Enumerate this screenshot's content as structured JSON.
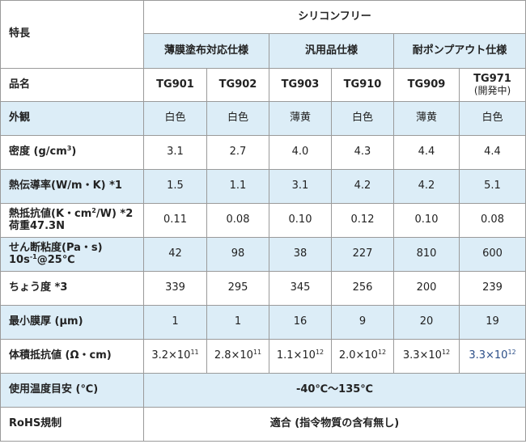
{
  "header": {
    "feature_label": "特長",
    "category": "シリコンフリー",
    "groups": [
      "薄膜塗布対応仕様",
      "汎用品仕様",
      "耐ポンプアウト仕様"
    ]
  },
  "rows": {
    "product": {
      "label": "品名",
      "values": [
        "TG901",
        "TG902",
        "TG903",
        "TG910",
        "TG909",
        "TG971"
      ],
      "note": "(開発中)"
    },
    "appearance": {
      "label": "外観",
      "values": [
        "白色",
        "白色",
        "薄黄",
        "白色",
        "薄黄",
        "白色"
      ]
    },
    "density": {
      "label_prefix": "密度 (g/cm",
      "label_sup": "3",
      "label_suffix": ")",
      "values": [
        "3.1",
        "2.7",
        "4.0",
        "4.3",
        "4.4",
        "4.4"
      ]
    },
    "conductivity": {
      "label": "熱伝導率(W/m・K) *1",
      "values": [
        "1.5",
        "1.1",
        "3.1",
        "4.2",
        "4.2",
        "5.1"
      ]
    },
    "resistance": {
      "label_prefix": "熱抵抗値(K・cm",
      "label_sup": "2",
      "label_suffix": "/W) *2",
      "label_line2": "荷重47.3N",
      "values": [
        "0.11",
        "0.08",
        "0.10",
        "0.12",
        "0.10",
        "0.08"
      ]
    },
    "viscosity": {
      "label_line1": "せん断粘度(Pa・s)",
      "label_prefix": "10s",
      "label_sup": "-1",
      "label_suffix": "@25℃",
      "values": [
        "42",
        "98",
        "38",
        "227",
        "810",
        "600"
      ]
    },
    "consistency": {
      "label": "ちょう度 *3",
      "values": [
        "339",
        "295",
        "345",
        "256",
        "200",
        "239"
      ]
    },
    "thickness": {
      "label": "最小膜厚 (μm)",
      "values": [
        "1",
        "1",
        "16",
        "9",
        "20",
        "19"
      ]
    },
    "volume_resistivity": {
      "label": "体積抵抗値 (Ω・cm)",
      "values": [
        {
          "base": "3.2×10",
          "exp": "11"
        },
        {
          "base": "2.8×10",
          "exp": "11"
        },
        {
          "base": "1.1×10",
          "exp": "12"
        },
        {
          "base": "2.0×10",
          "exp": "12"
        },
        {
          "base": "3.3×10",
          "exp": "12"
        },
        {
          "base": "3.3×10",
          "exp": "12"
        }
      ]
    },
    "temperature": {
      "label": "使用温度目安 (℃)",
      "value": "-40℃〜135℃"
    },
    "rohs": {
      "label": "RoHS規制",
      "value": "適合 (指令物質の含有無し)"
    }
  }
}
